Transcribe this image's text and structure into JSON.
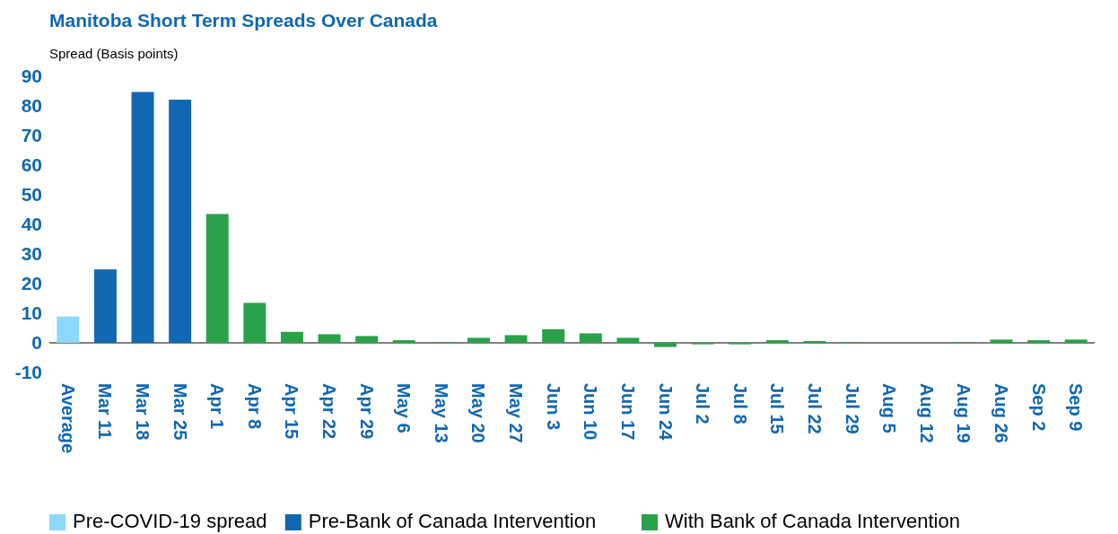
{
  "chart_data": {
    "type": "bar",
    "title": "Manitoba Short Term Spreads Over Canada",
    "ylabel": "Spread (Basis points)",
    "categories": [
      "Average",
      "Mar 11",
      "Mar 18",
      "Mar 25",
      "Apr 1",
      "Apr 8",
      "Apr 15",
      "Apr 22",
      "Apr 29",
      "May 6",
      "May 13",
      "May 20",
      "May 27",
      "Jun 3",
      "Jun 10",
      "Jun 17",
      "Jun 24",
      "Jul 2",
      "Jul 8",
      "Jul 15",
      "Jul 22",
      "Jul 29",
      "Aug 5",
      "Aug 12",
      "Aug 19",
      "Aug 26",
      "Sep 2",
      "Sep 9"
    ],
    "series": [
      {
        "name": "Pre-COVID-19 spread",
        "color": "#8dd8f8",
        "values": [
          8.9,
          null,
          null,
          null,
          null,
          null,
          null,
          null,
          null,
          null,
          null,
          null,
          null,
          null,
          null,
          null,
          null,
          null,
          null,
          null,
          null,
          null,
          null,
          null,
          null,
          null,
          null,
          null
        ]
      },
      {
        "name": "Pre-Bank of Canada Intervention",
        "color": "#1167b1",
        "values": [
          null,
          24.8,
          84.7,
          82.1,
          null,
          null,
          null,
          null,
          null,
          null,
          null,
          null,
          null,
          null,
          null,
          null,
          null,
          null,
          null,
          null,
          null,
          null,
          null,
          null,
          null,
          null,
          null,
          null
        ]
      },
      {
        "name": "With Bank of Canada Intervention",
        "color": "#2aa24a",
        "values": [
          null,
          null,
          null,
          null,
          43.5,
          13.5,
          3.7,
          2.9,
          2.3,
          0.9,
          0.2,
          1.7,
          2.6,
          4.6,
          3.2,
          1.7,
          -1.4,
          -0.5,
          -0.5,
          0.9,
          0.6,
          0.2,
          0,
          0,
          0.2,
          1.1,
          0.9,
          1.1
        ]
      }
    ],
    "ylim": [
      -10,
      90
    ],
    "yticks": [
      -10,
      0,
      10,
      20,
      30,
      40,
      50,
      60,
      70,
      80,
      90
    ],
    "legend": "bottom"
  }
}
